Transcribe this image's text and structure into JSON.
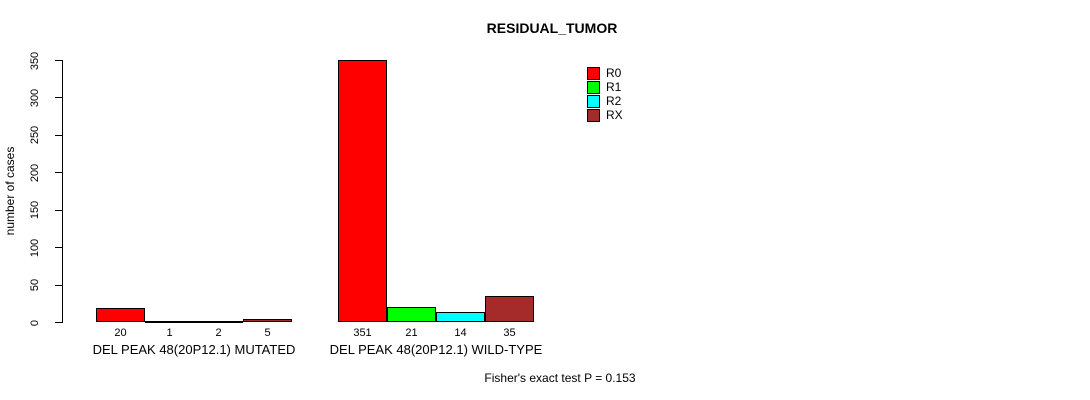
{
  "title": "RESIDUAL_TUMOR",
  "chart_data": {
    "type": "bar",
    "title": "RESIDUAL_TUMOR",
    "ylabel": "number of cases",
    "xlabel": "",
    "ylim": [
      0,
      350
    ],
    "yticks": [
      0,
      50,
      100,
      150,
      200,
      250,
      300,
      350
    ],
    "grid": false,
    "legend_position": "top-right-inside",
    "categories": [
      "DEL PEAK 48(20P12.1) MUTATED",
      "DEL PEAK 48(20P12.1) WILD-TYPE"
    ],
    "series": [
      {
        "name": "R0",
        "color": "#FF0000",
        "values": [
          20,
          351
        ]
      },
      {
        "name": "R1",
        "color": "#00FF00",
        "values": [
          1,
          21
        ]
      },
      {
        "name": "R2",
        "color": "#00FFFF",
        "values": [
          2,
          14
        ]
      },
      {
        "name": "RX",
        "color": "#A52A2A",
        "values": [
          5,
          35
        ]
      }
    ],
    "bar_value_labels": [
      [
        "20",
        "1",
        "2",
        "5"
      ],
      [
        "351",
        "21",
        "14",
        "35"
      ]
    ],
    "footer": "Fisher's exact test P = 0.153",
    "colors": {
      "axis": "#000000",
      "text": "#000000",
      "background": "#FFFFFF"
    }
  }
}
